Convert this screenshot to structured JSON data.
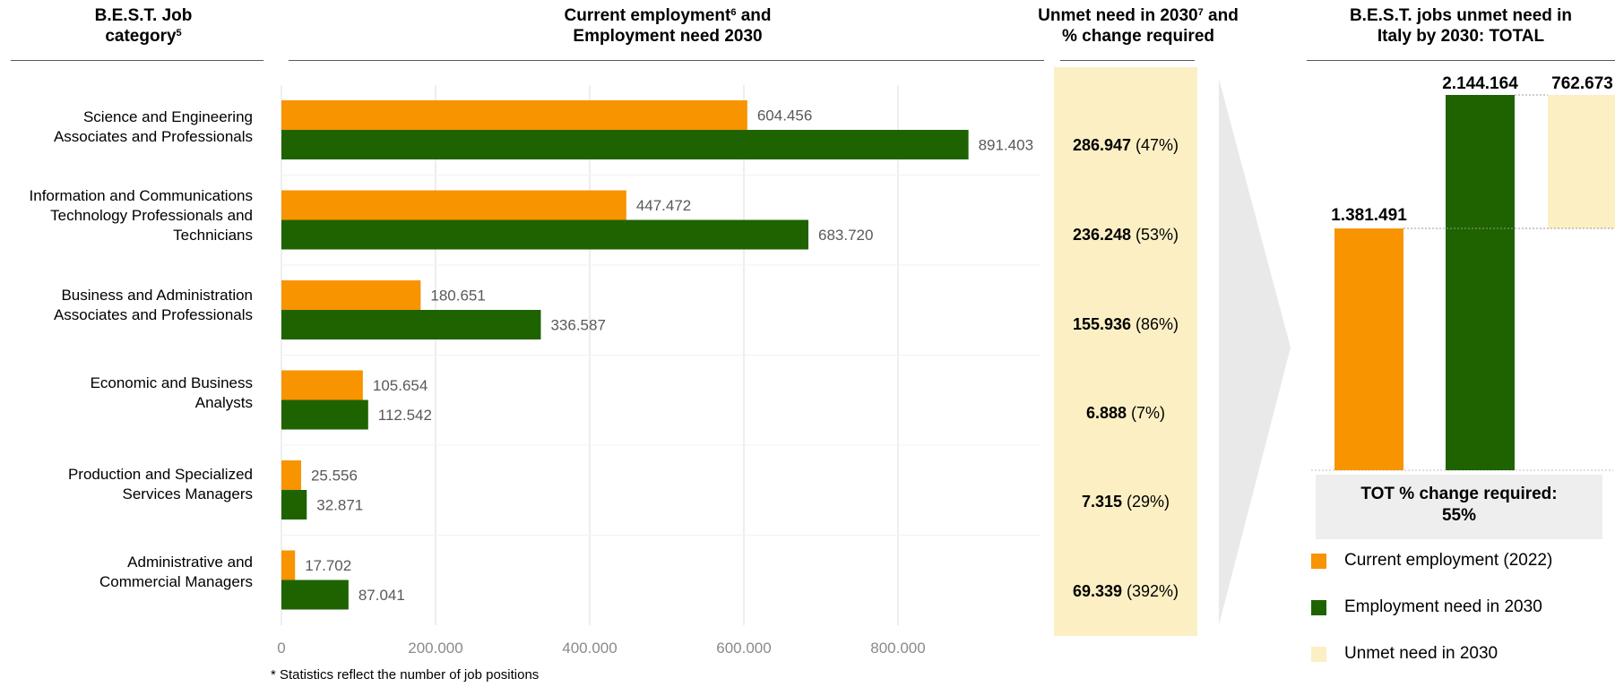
{
  "headers": {
    "category_pre": "B.E.S.T. Job",
    "category_line2": "category",
    "category_sup": "5",
    "employment_pre": "Current employment",
    "employment_sup": "6",
    "employment_post": " and",
    "employment_line2": "Employment need 2030",
    "unmet_pre": "Unmet need in 2030",
    "unmet_sup": "7",
    "unmet_post": " and",
    "unmet_line2": "% change required",
    "total_line1": "B.E.S.T. jobs unmet need in",
    "total_line2": "Italy by 2030: TOTAL"
  },
  "categories": [
    {
      "line1": "Science and Engineering",
      "line2": "Associates and Professionals",
      "line3": ""
    },
    {
      "line1": "Information and Communications",
      "line2": "Technology Professionals and",
      "line3": "Technicians"
    },
    {
      "line1": "Business and Administration",
      "line2": "Associates and Professionals",
      "line3": ""
    },
    {
      "line1": "Economic and Business",
      "line2": "Analysts",
      "line3": ""
    },
    {
      "line1": "Production and Specialized",
      "line2": "Services Managers",
      "line3": ""
    },
    {
      "line1": "Administrative and",
      "line2": "Commercial Managers",
      "line3": ""
    }
  ],
  "unmet_rows": [
    {
      "value": "286.947",
      "pct": " (47%)"
    },
    {
      "value": "236.248",
      "pct": " (53%)"
    },
    {
      "value": "155.936",
      "pct": " (86%)"
    },
    {
      "value": "6.888",
      "pct": " (7%)"
    },
    {
      "value": "7.315",
      "pct": " (29%)"
    },
    {
      "value": "69.339",
      "pct": " (392%)"
    }
  ],
  "chart_data": [
    {
      "type": "bar",
      "orientation": "horizontal",
      "categories": [
        "Science and Engineering Associates and Professionals",
        "Information and Communications Technology Professionals and Technicians",
        "Business and Administration Associates and Professionals",
        "Economic and Business Analysts",
        "Production and Specialized Services Managers",
        "Administrative and Commercial Managers"
      ],
      "series": [
        {
          "name": "Current employment (2022)",
          "values": [
            604456,
            447472,
            180651,
            105654,
            25556,
            17702
          ],
          "labels": [
            "604.456",
            "447.472",
            "180.651",
            "105.654",
            "25.556",
            "17.702"
          ]
        },
        {
          "name": "Employment need in 2030",
          "values": [
            891403,
            683720,
            336587,
            112542,
            32871,
            87041
          ],
          "labels": [
            "891.403",
            "683.720",
            "336.587",
            "112.542",
            "32.871",
            "87.041"
          ]
        }
      ],
      "xlim": [
        0,
        1000000
      ],
      "xticks": [
        0,
        200000,
        400000,
        600000,
        800000
      ],
      "xtick_labels": [
        "0",
        "200.000",
        "400.000",
        "600.000",
        "800.000"
      ],
      "grid": true
    },
    {
      "type": "bar",
      "subtype": "waterfall",
      "categories": [
        "Current employment (2022)",
        "Employment need in 2030",
        "Unmet need in 2030"
      ],
      "values": [
        1381491,
        2144164,
        762673
      ],
      "labels": [
        "1.381.491",
        "2.144.164",
        "762.673"
      ]
    }
  ],
  "total_box": {
    "line1": "TOT % change required:",
    "line2": "55%"
  },
  "legend": [
    {
      "label": "Current employment (2022)",
      "color": "#f79400"
    },
    {
      "label": "Employment need in 2030",
      "color": "#1e6300"
    },
    {
      "label": "Unmet need in 2030",
      "color": "#fbefc3"
    }
  ],
  "colors": {
    "current": "#f79400",
    "need": "#1e6300",
    "unmet": "#fbefc3"
  },
  "footnote": "* Statistics reflect the number of job positions"
}
